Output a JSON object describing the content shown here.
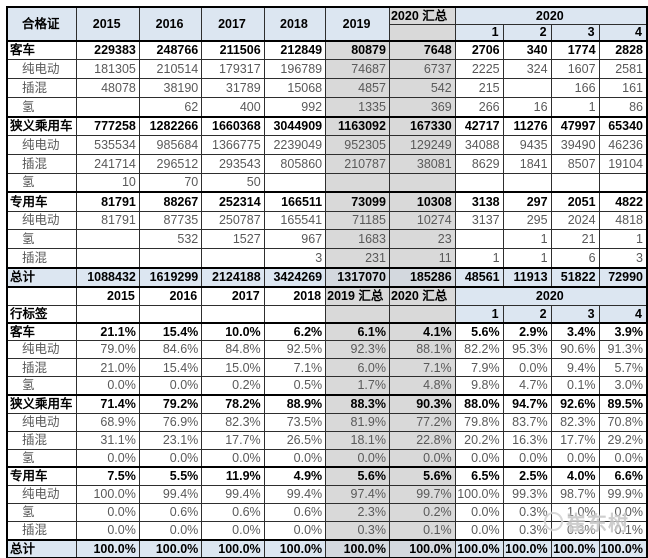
{
  "header1": {
    "label": "合格证",
    "years": [
      "2015",
      "2016",
      "2017",
      "2018",
      "2019"
    ],
    "total2020": "2020 汇总",
    "group2020": "2020",
    "months": [
      "1",
      "2",
      "3",
      "4"
    ]
  },
  "header2": {
    "row_label": "行标签",
    "years": [
      "2015",
      "2016",
      "2017",
      "2018"
    ],
    "total2019": "2019 汇总",
    "total2020": "2020 汇总",
    "group2020": "2020",
    "months": [
      "1",
      "2",
      "3",
      "4"
    ]
  },
  "table1": {
    "rows": [
      {
        "label": "客车",
        "type": "section",
        "values": [
          "229383",
          "248766",
          "211506",
          "212849",
          "80879",
          "7648",
          "2706",
          "340",
          "1774",
          "2828"
        ]
      },
      {
        "label": "纯电动",
        "type": "sub",
        "values": [
          "181305",
          "210514",
          "179317",
          "196789",
          "74687",
          "6737",
          "2225",
          "324",
          "1607",
          "2581"
        ]
      },
      {
        "label": "插混",
        "type": "sub",
        "values": [
          "48078",
          "38190",
          "31789",
          "15068",
          "4857",
          "542",
          "215",
          "",
          "166",
          "161"
        ]
      },
      {
        "label": "氢",
        "type": "sub",
        "values": [
          "",
          "62",
          "400",
          "992",
          "1335",
          "369",
          "266",
          "16",
          "1",
          "86"
        ]
      },
      {
        "label": "狭义乘用车",
        "type": "section",
        "values": [
          "777258",
          "1282266",
          "1660368",
          "3044909",
          "1163092",
          "167330",
          "42717",
          "11276",
          "47997",
          "65340"
        ]
      },
      {
        "label": "纯电动",
        "type": "sub",
        "values": [
          "535534",
          "985684",
          "1366775",
          "2239049",
          "952305",
          "129249",
          "34088",
          "9435",
          "39490",
          "46236"
        ]
      },
      {
        "label": "插混",
        "type": "sub",
        "values": [
          "241714",
          "296512",
          "293543",
          "805860",
          "210787",
          "38081",
          "8629",
          "1841",
          "8507",
          "19104"
        ]
      },
      {
        "label": "氢",
        "type": "sub",
        "values": [
          "10",
          "70",
          "50",
          "",
          "",
          "",
          "",
          "",
          "",
          ""
        ]
      },
      {
        "label": "专用车",
        "type": "section",
        "values": [
          "81791",
          "88267",
          "252314",
          "166511",
          "73099",
          "10308",
          "3138",
          "297",
          "2051",
          "4822"
        ]
      },
      {
        "label": "纯电动",
        "type": "sub",
        "values": [
          "81791",
          "87735",
          "250787",
          "165541",
          "71185",
          "10274",
          "3137",
          "295",
          "2024",
          "4818"
        ]
      },
      {
        "label": "氢",
        "type": "sub",
        "values": [
          "",
          "532",
          "1527",
          "967",
          "1683",
          "23",
          "",
          "1",
          "21",
          "1"
        ]
      },
      {
        "label": "插混",
        "type": "sub",
        "values": [
          "",
          "",
          "",
          "3",
          "231",
          "11",
          "1",
          "1",
          "6",
          "3"
        ]
      },
      {
        "label": "总计",
        "type": "total",
        "values": [
          "1088432",
          "1619299",
          "2124188",
          "3424269",
          "1317070",
          "185286",
          "48561",
          "11913",
          "51822",
          "72990"
        ]
      }
    ]
  },
  "table2": {
    "rows": [
      {
        "label": "客车",
        "type": "section",
        "values": [
          "21.1%",
          "15.4%",
          "10.0%",
          "6.2%",
          "6.1%",
          "4.1%",
          "5.6%",
          "2.9%",
          "3.4%",
          "3.9%"
        ]
      },
      {
        "label": "纯电动",
        "type": "sub",
        "values": [
          "79.0%",
          "84.6%",
          "84.8%",
          "92.5%",
          "92.3%",
          "88.1%",
          "82.2%",
          "95.3%",
          "90.6%",
          "91.3%"
        ]
      },
      {
        "label": "插混",
        "type": "sub",
        "values": [
          "21.0%",
          "15.4%",
          "15.0%",
          "7.1%",
          "6.0%",
          "7.1%",
          "7.9%",
          "0.0%",
          "9.4%",
          "5.7%"
        ]
      },
      {
        "label": "氢",
        "type": "sub",
        "values": [
          "0.0%",
          "0.0%",
          "0.2%",
          "0.5%",
          "1.7%",
          "4.8%",
          "9.8%",
          "4.7%",
          "0.1%",
          "3.0%"
        ]
      },
      {
        "label": "狭义乘用车",
        "type": "section",
        "values": [
          "71.4%",
          "79.2%",
          "78.2%",
          "88.9%",
          "88.3%",
          "90.3%",
          "88.0%",
          "94.7%",
          "92.6%",
          "89.5%"
        ]
      },
      {
        "label": "纯电动",
        "type": "sub",
        "values": [
          "68.9%",
          "76.9%",
          "82.3%",
          "73.5%",
          "81.9%",
          "77.2%",
          "79.8%",
          "83.7%",
          "82.3%",
          "70.8%"
        ]
      },
      {
        "label": "插混",
        "type": "sub",
        "values": [
          "31.1%",
          "23.1%",
          "17.7%",
          "26.5%",
          "18.1%",
          "22.8%",
          "20.2%",
          "16.3%",
          "17.7%",
          "29.2%"
        ]
      },
      {
        "label": "氢",
        "type": "sub",
        "values": [
          "0.0%",
          "0.0%",
          "0.0%",
          "0.0%",
          "0.0%",
          "0.0%",
          "0.0%",
          "0.0%",
          "0.0%",
          "0.0%"
        ]
      },
      {
        "label": "专用车",
        "type": "section",
        "values": [
          "7.5%",
          "5.5%",
          "11.9%",
          "4.9%",
          "5.6%",
          "5.6%",
          "6.5%",
          "2.5%",
          "4.0%",
          "6.6%"
        ]
      },
      {
        "label": "纯电动",
        "type": "sub",
        "values": [
          "100.0%",
          "99.4%",
          "99.4%",
          "99.4%",
          "97.4%",
          "99.7%",
          "100.0%",
          "99.3%",
          "98.7%",
          "99.9%"
        ]
      },
      {
        "label": "氢",
        "type": "sub",
        "values": [
          "0.0%",
          "0.6%",
          "0.6%",
          "0.6%",
          "2.3%",
          "0.2%",
          "0.0%",
          "0.3%",
          "1.0%",
          "0.0%"
        ]
      },
      {
        "label": "插混",
        "type": "sub",
        "values": [
          "0.0%",
          "0.0%",
          "0.0%",
          "0.0%",
          "0.3%",
          "0.1%",
          "0.0%",
          "0.3%",
          "0.3%",
          "0.1%"
        ]
      },
      {
        "label": "总计",
        "type": "total",
        "values": [
          "100.0%",
          "100.0%",
          "100.0%",
          "100.0%",
          "100.0%",
          "100.0%",
          "100.0%",
          "100.0%",
          "100.0%",
          "100.0%"
        ]
      }
    ]
  },
  "watermark": {
    "text": "崔东树"
  },
  "colors": {
    "header_blue": "#dce6f1",
    "band_gray": "#d9d9d9",
    "section_text": "#000000",
    "sub_text": "#595959"
  }
}
